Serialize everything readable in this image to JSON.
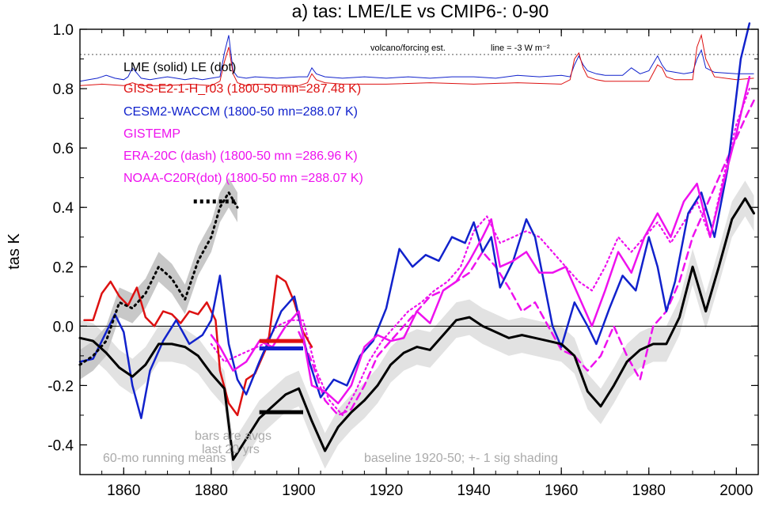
{
  "chart_data": {
    "type": "line",
    "title": "a) tas: LME/LE vs CMIP6-: 0-90",
    "ylabel": "tas K",
    "xlabel": "",
    "xlim": [
      1850,
      2005
    ],
    "ylim": [
      -0.5,
      1.0
    ],
    "x_ticks": [
      1860,
      1880,
      1900,
      1920,
      1940,
      1960,
      1980,
      2000
    ],
    "y_ticks": [
      -0.4,
      -0.2,
      0.0,
      0.2,
      0.4,
      0.6,
      0.8,
      1.0
    ],
    "y_tick_labels": [
      "-0.4",
      "-0.2",
      "0.0",
      "0.2",
      "0.4",
      "0.6",
      "0.8",
      "1.0"
    ],
    "colors": {
      "lme": "#000000",
      "giss": "#dd1111",
      "cesm": "#1122cc",
      "obs": "#ee11ee",
      "shade_le": "#c8c8c8",
      "shade_lme": "#e2e2e2",
      "forcing_line": "#777777"
    },
    "legend": {
      "header": "LME (solid)   LE (dot)",
      "giss": "GISS-E2-1-H_r03 (1800-50 mn=287.48 K)",
      "cesm": "CESM2-WACCM (1800-50 mn=288.07 K)",
      "gistemp": "GISTEMP",
      "era": "ERA-20C (dash) (1800-50 mn =286.96 K)",
      "noaa": "NOAA-C20R(dot) (1800-50 mn =288.07 K)"
    },
    "annotations": {
      "volcano": "volcano/forcing est.",
      "forcing_line": "line = -3 W m⁻²",
      "bars": "bars are avgs last 20 yrs",
      "running": "60-mo running means",
      "baseline": "baseline 1920-50; +- 1 sig shading"
    },
    "series": [
      {
        "name": "LME",
        "style": "solid",
        "x": [
          1850,
          1853,
          1856,
          1859,
          1862,
          1865,
          1868,
          1871,
          1874,
          1877,
          1880,
          1883,
          1885,
          1888,
          1891,
          1894,
          1897,
          1900,
          1903,
          1906,
          1909,
          1912,
          1915,
          1918,
          1921,
          1924,
          1927,
          1930,
          1933,
          1936,
          1939,
          1942,
          1945,
          1948,
          1951,
          1954,
          1957,
          1960,
          1963,
          1966,
          1969,
          1972,
          1975,
          1978,
          1981,
          1984,
          1987,
          1990,
          1993,
          1996,
          1999,
          2002,
          2004
        ],
        "y": [
          -0.04,
          -0.05,
          -0.09,
          -0.14,
          -0.17,
          -0.13,
          -0.06,
          -0.06,
          -0.07,
          -0.1,
          -0.16,
          -0.21,
          -0.45,
          -0.38,
          -0.31,
          -0.27,
          -0.23,
          -0.21,
          -0.32,
          -0.42,
          -0.34,
          -0.29,
          -0.25,
          -0.2,
          -0.13,
          -0.09,
          -0.07,
          -0.08,
          -0.03,
          0.02,
          0.03,
          0.0,
          -0.02,
          -0.04,
          -0.03,
          -0.04,
          -0.05,
          -0.06,
          -0.1,
          -0.22,
          -0.27,
          -0.2,
          -0.12,
          -0.08,
          -0.06,
          -0.06,
          0.03,
          0.2,
          0.05,
          0.2,
          0.36,
          0.43,
          0.38
        ]
      },
      {
        "name": "LE",
        "style": "dot",
        "x": [
          1850,
          1853,
          1856,
          1859,
          1862,
          1865,
          1868,
          1871,
          1874,
          1877,
          1880,
          1882,
          1884,
          1886
        ],
        "y": [
          -0.13,
          -0.1,
          -0.05,
          0.08,
          0.06,
          0.11,
          0.2,
          0.16,
          0.09,
          0.22,
          0.3,
          0.4,
          0.45,
          0.4
        ]
      },
      {
        "name": "GISS-E2-1-H_r03",
        "style": "solid",
        "x": [
          1851,
          1853,
          1855,
          1857,
          1859,
          1861,
          1863,
          1865,
          1867,
          1869,
          1871,
          1873,
          1875,
          1877,
          1879,
          1881,
          1882,
          1884,
          1886,
          1888,
          1890,
          1893,
          1895,
          1897,
          1899,
          1901,
          1903
        ],
        "y": [
          0.02,
          0.02,
          0.11,
          0.15,
          0.1,
          0.07,
          0.13,
          0.03,
          0.0,
          0.05,
          0.04,
          0.01,
          0.05,
          0.04,
          0.08,
          0.02,
          -0.15,
          -0.26,
          -0.3,
          -0.18,
          -0.16,
          -0.06,
          0.17,
          0.15,
          0.08,
          -0.02,
          -0.07
        ]
      },
      {
        "name": "CESM2-WACCM",
        "style": "solid",
        "x": [
          1850,
          1853,
          1856,
          1858,
          1860,
          1862,
          1864,
          1866,
          1869,
          1872,
          1875,
          1878,
          1880,
          1882,
          1884,
          1886,
          1888,
          1891,
          1894,
          1896,
          1899,
          1902,
          1905,
          1908,
          1911,
          1914,
          1917,
          1920,
          1923,
          1926,
          1929,
          1932,
          1935,
          1938,
          1940,
          1942,
          1944,
          1946,
          1949,
          1952,
          1954,
          1956,
          1958,
          1960,
          1963,
          1966,
          1968,
          1971,
          1974,
          1977,
          1980,
          1982,
          1984,
          1986,
          1989,
          1992,
          1995,
          1998,
          2001,
          2003
        ],
        "y": [
          -0.12,
          -0.11,
          -0.02,
          0.04,
          -0.02,
          -0.2,
          -0.31,
          -0.15,
          -0.05,
          0.02,
          -0.06,
          -0.03,
          0.02,
          0.17,
          -0.06,
          -0.18,
          -0.23,
          -0.12,
          -0.02,
          0.05,
          0.1,
          -0.1,
          -0.24,
          -0.18,
          -0.2,
          -0.1,
          -0.05,
          0.06,
          0.26,
          0.2,
          0.24,
          0.22,
          0.3,
          0.28,
          0.35,
          0.25,
          0.3,
          0.13,
          0.22,
          0.36,
          0.3,
          0.15,
          0.0,
          -0.07,
          0.08,
          0.0,
          -0.06,
          0.06,
          0.17,
          0.12,
          0.3,
          0.2,
          0.05,
          0.15,
          0.38,
          0.45,
          0.3,
          0.53,
          0.9,
          1.02
        ]
      },
      {
        "name": "GISTEMP",
        "style": "solid",
        "x": [
          1880,
          1882,
          1885,
          1888,
          1891,
          1894,
          1897,
          1900,
          1903,
          1906,
          1909,
          1912,
          1915,
          1918,
          1921,
          1924,
          1927,
          1930,
          1933,
          1936,
          1939,
          1942,
          1944,
          1946,
          1949,
          1952,
          1955,
          1958,
          1961,
          1964,
          1967,
          1970,
          1973,
          1976,
          1979,
          1982,
          1985,
          1988,
          1991,
          1994,
          1997,
          2000,
          2003
        ],
        "y": [
          -0.03,
          -0.07,
          -0.15,
          -0.12,
          -0.05,
          -0.07,
          0.0,
          0.05,
          -0.2,
          -0.22,
          -0.26,
          -0.2,
          -0.07,
          -0.03,
          -0.05,
          -0.04,
          0.05,
          0.01,
          0.12,
          0.15,
          0.22,
          0.3,
          0.36,
          0.2,
          0.22,
          0.25,
          0.18,
          0.18,
          0.2,
          0.1,
          0.0,
          0.12,
          0.25,
          0.18,
          0.3,
          0.38,
          0.3,
          0.42,
          0.48,
          0.3,
          0.48,
          0.65,
          0.84
        ]
      },
      {
        "name": "ERA-20C",
        "style": "dash",
        "x": [
          1900,
          1903,
          1906,
          1909,
          1912,
          1915,
          1918,
          1921,
          1924,
          1927,
          1930,
          1933,
          1936,
          1939,
          1942,
          1945,
          1948,
          1951,
          1954,
          1957,
          1960,
          1963,
          1966,
          1969,
          1972,
          1975,
          1978,
          1981,
          1984,
          1987,
          1990,
          1993,
          1996,
          1999,
          2002,
          2004
        ],
        "y": [
          -0.02,
          -0.12,
          -0.25,
          -0.3,
          -0.28,
          -0.2,
          -0.1,
          -0.05,
          0.0,
          0.05,
          0.1,
          0.12,
          0.15,
          0.18,
          0.25,
          0.2,
          0.13,
          0.05,
          0.08,
          0.0,
          -0.08,
          -0.1,
          -0.15,
          -0.1,
          0.0,
          -0.1,
          -0.18,
          0.0,
          0.05,
          0.15,
          0.3,
          0.4,
          0.5,
          0.6,
          0.7,
          0.76
        ]
      },
      {
        "name": "NOAA-C20R",
        "style": "dot",
        "x": [
          1880,
          1883,
          1886,
          1889,
          1892,
          1895,
          1898,
          1901,
          1904,
          1907,
          1910,
          1913,
          1916,
          1919,
          1922,
          1925,
          1928,
          1931,
          1934,
          1937,
          1940,
          1943,
          1946,
          1949,
          1952,
          1955,
          1958,
          1961,
          1964,
          1967,
          1970,
          1973,
          1976,
          1979,
          1982,
          1985,
          1988,
          1991,
          1994,
          1997,
          2000,
          2003
        ],
        "y": [
          -0.06,
          -0.12,
          -0.1,
          -0.08,
          -0.06,
          0.0,
          0.02,
          0.02,
          -0.15,
          -0.25,
          -0.3,
          -0.22,
          -0.12,
          -0.05,
          0.0,
          0.05,
          0.08,
          0.12,
          0.15,
          0.2,
          0.32,
          0.37,
          0.28,
          0.3,
          0.32,
          0.3,
          0.25,
          0.2,
          0.15,
          0.12,
          0.2,
          0.3,
          0.25,
          0.3,
          0.35,
          0.28,
          0.35,
          0.42,
          0.3,
          0.5,
          0.68,
          0.8
        ]
      }
    ],
    "bars": [
      {
        "name": "GISS-E2-1-H_r03",
        "x0": 1891,
        "x1": 1901,
        "y": -0.05
      },
      {
        "name": "CESM2-WACCM",
        "x0": 1891,
        "x1": 1901,
        "y": -0.075
      },
      {
        "name": "LME",
        "x0": 1891,
        "x1": 1901,
        "y": -0.29
      },
      {
        "name": "LE",
        "x0": 1876,
        "x1": 1886,
        "y": 0.42
      }
    ],
    "forcing": {
      "threshold_line_y": 0.915,
      "series": [
        {
          "name": "LME forcing",
          "color": "#1122cc",
          "x": [
            1850,
            1852,
            1854,
            1856,
            1858,
            1860,
            1861,
            1862,
            1864,
            1866,
            1868,
            1870,
            1872,
            1874,
            1876,
            1878,
            1880,
            1882,
            1883,
            1884,
            1885,
            1886,
            1888,
            1890,
            1895,
            1900,
            1902,
            1903,
            1904,
            1906,
            1910,
            1915,
            1920,
            1925,
            1930,
            1935,
            1940,
            1945,
            1950,
            1955,
            1960,
            1962,
            1963,
            1964,
            1965,
            1966,
            1968,
            1970,
            1974,
            1976,
            1978,
            1980,
            1982,
            1983,
            1984,
            1986,
            1988,
            1990,
            1991,
            1992,
            1993,
            1995,
            2000,
            2004
          ],
          "y": [
            0.825,
            0.83,
            0.835,
            0.845,
            0.835,
            0.83,
            0.84,
            0.87,
            0.835,
            0.83,
            0.835,
            0.84,
            0.835,
            0.83,
            0.835,
            0.83,
            0.835,
            0.84,
            0.92,
            0.98,
            0.86,
            0.84,
            0.835,
            0.84,
            0.835,
            0.84,
            0.84,
            0.87,
            0.85,
            0.84,
            0.835,
            0.84,
            0.835,
            0.84,
            0.835,
            0.84,
            0.84,
            0.835,
            0.845,
            0.84,
            0.845,
            0.84,
            0.88,
            0.91,
            0.88,
            0.86,
            0.85,
            0.845,
            0.845,
            0.87,
            0.85,
            0.86,
            0.91,
            0.88,
            0.86,
            0.855,
            0.85,
            0.855,
            0.9,
            0.93,
            0.87,
            0.855,
            0.85,
            0.85
          ]
        },
        {
          "name": "GISS forcing",
          "color": "#dd1111",
          "x": [
            1850,
            1855,
            1860,
            1862,
            1864,
            1870,
            1875,
            1880,
            1882,
            1883,
            1884,
            1885,
            1886,
            1888,
            1890,
            1900,
            1902,
            1903,
            1904,
            1906,
            1910,
            1920,
            1930,
            1940,
            1950,
            1960,
            1962,
            1963,
            1964,
            1965,
            1966,
            1968,
            1970,
            1980,
            1982,
            1983,
            1984,
            1986,
            1990,
            1991,
            1992,
            1993,
            1995,
            2000,
            2004
          ],
          "y": [
            0.81,
            0.815,
            0.81,
            0.82,
            0.81,
            0.81,
            0.815,
            0.81,
            0.825,
            0.89,
            0.94,
            0.85,
            0.82,
            0.81,
            0.815,
            0.81,
            0.82,
            0.85,
            0.83,
            0.82,
            0.815,
            0.815,
            0.82,
            0.815,
            0.82,
            0.815,
            0.83,
            0.9,
            0.92,
            0.87,
            0.84,
            0.83,
            0.825,
            0.825,
            0.88,
            0.87,
            0.84,
            0.83,
            0.83,
            0.94,
            0.98,
            0.9,
            0.84,
            0.83,
            0.835
          ]
        }
      ]
    }
  }
}
